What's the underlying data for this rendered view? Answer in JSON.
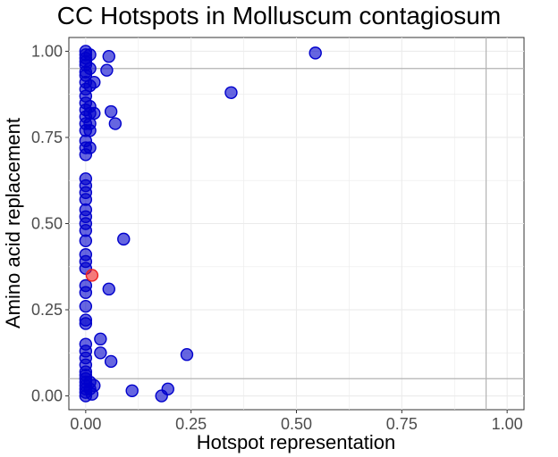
{
  "chart_data": {
    "type": "scatter",
    "title": "CC Hotspots in Molluscum contagiosum",
    "xlabel": "Hotspot representation",
    "ylabel": "Amino acid replacement",
    "xlim": [
      -0.04,
      1.04
    ],
    "ylim": [
      -0.04,
      1.04
    ],
    "x_ticks": [
      "0.00",
      "0.25",
      "0.50",
      "0.75",
      "1.00"
    ],
    "y_ticks": [
      "0.00",
      "0.25",
      "0.50",
      "0.75",
      "1.00"
    ],
    "grid": true,
    "legend": "none",
    "reference_lines": {
      "horizontal": [
        0.95,
        0.05
      ],
      "vertical": [
        0.95
      ]
    },
    "colors": {
      "default_point": "#0000cc",
      "highlight_point": "#ee2222",
      "reference_line": "#b3b3b3",
      "grid": "#ebebeb"
    },
    "series": [
      {
        "color": "#0000cc",
        "points": [
          [
            0.0,
            1.0
          ],
          [
            0.0,
            0.99
          ],
          [
            0.0,
            0.98
          ],
          [
            0.0,
            0.97
          ],
          [
            0.0,
            0.96
          ],
          [
            0.0,
            0.94
          ],
          [
            0.0,
            0.93
          ],
          [
            0.0,
            0.91
          ],
          [
            0.0,
            0.89
          ],
          [
            0.0,
            0.87
          ],
          [
            0.0,
            0.85
          ],
          [
            0.0,
            0.83
          ],
          [
            0.0,
            0.81
          ],
          [
            0.0,
            0.79
          ],
          [
            0.0,
            0.77
          ],
          [
            0.0,
            0.74
          ],
          [
            0.0,
            0.72
          ],
          [
            0.0,
            0.7
          ],
          [
            0.0,
            0.63
          ],
          [
            0.0,
            0.61
          ],
          [
            0.0,
            0.59
          ],
          [
            0.0,
            0.57
          ],
          [
            0.0,
            0.54
          ],
          [
            0.0,
            0.52
          ],
          [
            0.0,
            0.5
          ],
          [
            0.0,
            0.48
          ],
          [
            0.0,
            0.45
          ],
          [
            0.0,
            0.41
          ],
          [
            0.0,
            0.39
          ],
          [
            0.0,
            0.37
          ],
          [
            0.0,
            0.32
          ],
          [
            0.0,
            0.3
          ],
          [
            0.0,
            0.26
          ],
          [
            0.0,
            0.22
          ],
          [
            0.0,
            0.21
          ],
          [
            0.0,
            0.15
          ],
          [
            0.0,
            0.13
          ],
          [
            0.0,
            0.11
          ],
          [
            0.0,
            0.09
          ],
          [
            0.0,
            0.07
          ],
          [
            0.0,
            0.06
          ],
          [
            0.0,
            0.05
          ],
          [
            0.0,
            0.04
          ],
          [
            0.0,
            0.03
          ],
          [
            0.0,
            0.02
          ],
          [
            0.0,
            0.01
          ],
          [
            0.0,
            0.0
          ],
          [
            0.01,
            0.99
          ],
          [
            0.01,
            0.95
          ],
          [
            0.01,
            0.9
          ],
          [
            0.01,
            0.84
          ],
          [
            0.01,
            0.82
          ],
          [
            0.01,
            0.79
          ],
          [
            0.01,
            0.77
          ],
          [
            0.01,
            0.72
          ],
          [
            0.01,
            0.04
          ],
          [
            0.01,
            0.02
          ],
          [
            0.015,
            0.005
          ],
          [
            0.02,
            0.91
          ],
          [
            0.02,
            0.82
          ],
          [
            0.02,
            0.03
          ],
          [
            0.035,
            0.165
          ],
          [
            0.035,
            0.125
          ],
          [
            0.05,
            0.945
          ],
          [
            0.055,
            0.985
          ],
          [
            0.055,
            0.31
          ],
          [
            0.06,
            0.825
          ],
          [
            0.06,
            0.1
          ],
          [
            0.07,
            0.79
          ],
          [
            0.09,
            0.455
          ],
          [
            0.11,
            0.015
          ],
          [
            0.18,
            0.0
          ],
          [
            0.195,
            0.02
          ],
          [
            0.24,
            0.12
          ],
          [
            0.345,
            0.88
          ],
          [
            0.545,
            0.995
          ]
        ]
      },
      {
        "color": "#ee2222",
        "points": [
          [
            0.015,
            0.35
          ]
        ]
      }
    ]
  }
}
